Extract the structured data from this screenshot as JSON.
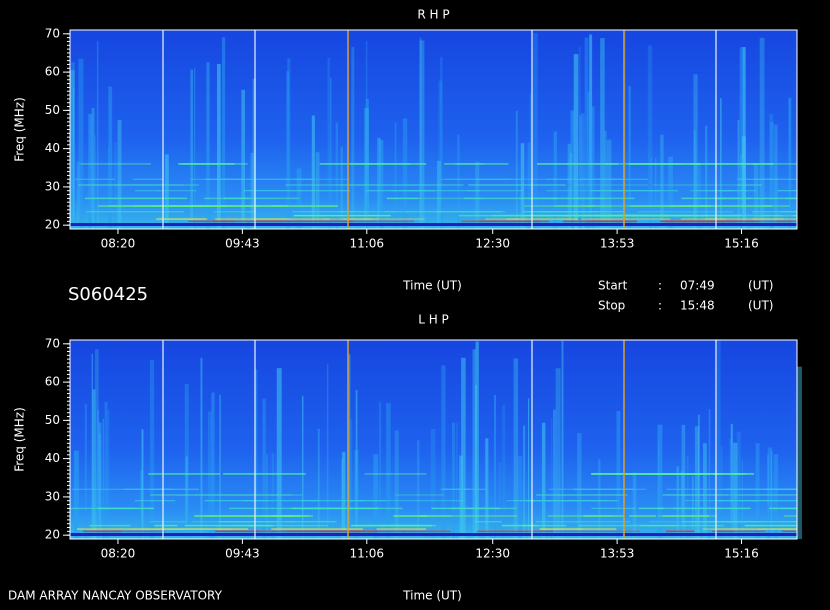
{
  "chart_data": [
    {
      "type": "spectrogram",
      "title": "R H P",
      "xlabel": "Time (UT)",
      "ylabel": "Freq (MHz)",
      "xlim": [
        468,
        953
      ],
      "xticks": [
        {
          "value": 500,
          "label": "08:20"
        },
        {
          "value": 583,
          "label": "09:43"
        },
        {
          "value": 666,
          "label": "11:06"
        },
        {
          "value": 750,
          "label": "12:30"
        },
        {
          "value": 833,
          "label": "13:53"
        },
        {
          "value": 916,
          "label": "15:16"
        }
      ],
      "ylim": [
        19,
        71
      ],
      "yticks": [
        20,
        30,
        40,
        50,
        60,
        70
      ]
    },
    {
      "type": "spectrogram",
      "title": "L H P",
      "xlabel": "Time (UT)",
      "ylabel": "Freq (MHz)",
      "xlim": [
        468,
        953
      ],
      "xticks": [
        {
          "value": 500,
          "label": "08:20"
        },
        {
          "value": 583,
          "label": "09:43"
        },
        {
          "value": 666,
          "label": "11:06"
        },
        {
          "value": 750,
          "label": "12:30"
        },
        {
          "value": 833,
          "label": "13:53"
        },
        {
          "value": 916,
          "label": "15:16"
        }
      ],
      "ylim": [
        19,
        71
      ],
      "yticks": [
        20,
        30,
        40,
        50,
        60,
        70
      ]
    }
  ],
  "info": {
    "station": "S060425",
    "start_label": "Start",
    "start_sep": ":",
    "start": "07:49",
    "start_unit": "(UT)",
    "stop_label": "Stop",
    "stop_sep": ":",
    "stop": "15:48",
    "stop_unit": "(UT)",
    "footer": "DAM ARRAY  NANCAY OBSERVATORY"
  }
}
